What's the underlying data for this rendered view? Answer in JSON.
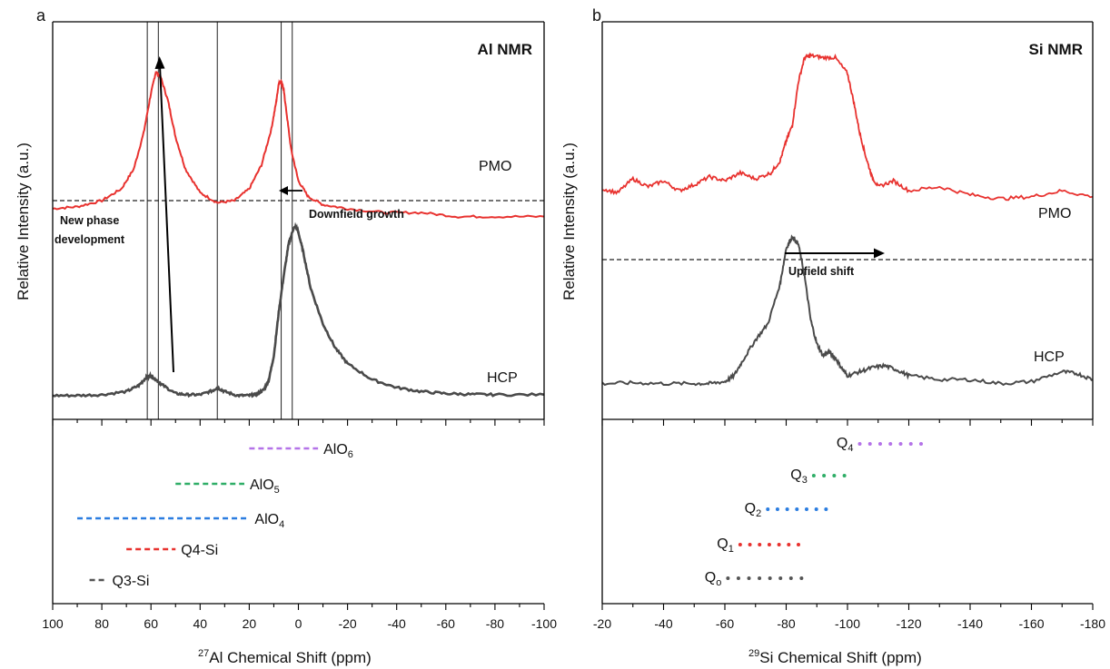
{
  "chart_data": [
    {
      "type": "line",
      "panel_letter": "a",
      "title": "Al NMR",
      "xlabel_sup": "27",
      "xlabel_main": "Al Chemical Shift (ppm)",
      "ylabel": "Relative Intensity (a.u.)",
      "xlim": [
        100,
        -100
      ],
      "x_ticks": [
        "100",
        "80",
        "60",
        "40",
        "20",
        "0",
        "-20",
        "-40",
        "-60",
        "-80",
        "-100"
      ],
      "x_tick_values": [
        100,
        80,
        60,
        40,
        20,
        0,
        -20,
        -40,
        -60,
        -80,
        -100
      ],
      "reference_lines_ppm": [
        61.5,
        57,
        33,
        7,
        2.5
      ],
      "series": [
        {
          "name": "PMO",
          "color": "#e8322f",
          "x": [
            100,
            90,
            80,
            72,
            67,
            63,
            60,
            58,
            56,
            53,
            50,
            46,
            40,
            33,
            26,
            20,
            15,
            11,
            9,
            8,
            7,
            6,
            5,
            3,
            0,
            -4,
            -10,
            -20,
            -35,
            -50,
            -65,
            -80,
            -100
          ],
          "y": [
            0.53,
            0.535,
            0.55,
            0.58,
            0.63,
            0.72,
            0.82,
            0.875,
            0.86,
            0.8,
            0.71,
            0.63,
            0.57,
            0.545,
            0.55,
            0.58,
            0.64,
            0.73,
            0.8,
            0.845,
            0.85,
            0.83,
            0.78,
            0.68,
            0.6,
            0.56,
            0.54,
            0.53,
            0.52,
            0.52,
            0.51,
            0.51,
            0.51
          ]
        },
        {
          "name": "HCP",
          "color": "#4a4a4a",
          "x": [
            100,
            90,
            80,
            70,
            65,
            62,
            60,
            58,
            55,
            50,
            45,
            40,
            35,
            33,
            30,
            25,
            20,
            17,
            14,
            12,
            10,
            8,
            6,
            4,
            2,
            1,
            0,
            -2,
            -5,
            -10,
            -15,
            -20,
            -30,
            -40,
            -50,
            -60,
            -70,
            -80,
            -100
          ],
          "y": [
            0.06,
            0.06,
            0.062,
            0.07,
            0.085,
            0.105,
            0.11,
            0.1,
            0.085,
            0.065,
            0.062,
            0.062,
            0.072,
            0.08,
            0.07,
            0.06,
            0.06,
            0.063,
            0.075,
            0.1,
            0.16,
            0.27,
            0.36,
            0.44,
            0.48,
            0.485,
            0.47,
            0.42,
            0.33,
            0.24,
            0.18,
            0.14,
            0.1,
            0.08,
            0.07,
            0.065,
            0.063,
            0.062,
            0.062
          ]
        }
      ],
      "baseline_y": 0.485,
      "annotations": {
        "pmo_label": "PMO",
        "hcp_label": "HCP",
        "new_phase_line1": "New phase",
        "new_phase_line2": "development",
        "downfield": "Downfield growth"
      },
      "ranges": [
        {
          "label_main": "AlO",
          "label_sub": "6",
          "from": 20,
          "to": -8,
          "color": "#b473e8",
          "style": "dash"
        },
        {
          "label_main": "AlO",
          "label_sub": "5",
          "from": 50,
          "to": 22,
          "color": "#2fae67",
          "style": "dash"
        },
        {
          "label_main": "AlO",
          "label_sub": "4",
          "from": 90,
          "to": 20,
          "color": "#2b7de0",
          "style": "dash"
        },
        {
          "label_main": "Q4-Si",
          "label_sub": "",
          "from": 70,
          "to": 50,
          "color": "#e8322f",
          "style": "dash"
        },
        {
          "label_main": "Q3-Si",
          "label_sub": "",
          "from": 85,
          "to": 78,
          "color": "#555555",
          "style": "dash"
        }
      ]
    },
    {
      "type": "line",
      "panel_letter": "b",
      "title": "Si NMR",
      "xlabel_sup": "29",
      "xlabel_main": "Si Chemical Shift (ppm)",
      "ylabel": "Relative Intensity (a.u.)",
      "xlim": [
        -20,
        -180
      ],
      "x_ticks": [
        "-20",
        "-40",
        "-60",
        "-80",
        "-100",
        "-120",
        "-140",
        "-160",
        "-180"
      ],
      "x_tick_values": [
        -20,
        -40,
        -60,
        -80,
        -100,
        -120,
        -140,
        -160,
        -180
      ],
      "series": [
        {
          "name": "PMO",
          "color": "#e8322f",
          "x": [
            -20,
            -25,
            -30,
            -35,
            -40,
            -45,
            -50,
            -55,
            -60,
            -65,
            -70,
            -75,
            -78,
            -80,
            -82,
            -84,
            -86,
            -88,
            -92,
            -96,
            -100,
            -102,
            -104,
            -106,
            -108,
            -110,
            -115,
            -120,
            -130,
            -140,
            -150,
            -160,
            -170,
            -180
          ],
          "y": [
            0.58,
            0.57,
            0.605,
            0.585,
            0.6,
            0.575,
            0.59,
            0.61,
            0.6,
            0.62,
            0.605,
            0.62,
            0.65,
            0.7,
            0.74,
            0.85,
            0.91,
            0.915,
            0.91,
            0.91,
            0.87,
            0.8,
            0.72,
            0.66,
            0.61,
            0.585,
            0.6,
            0.575,
            0.585,
            0.565,
            0.555,
            0.56,
            0.575,
            0.56
          ]
        },
        {
          "name": "HCP",
          "color": "#4a4a4a",
          "x": [
            -20,
            -30,
            -40,
            -50,
            -55,
            -60,
            -63,
            -66,
            -70,
            -74,
            -78,
            -80,
            -82,
            -84,
            -86,
            -88,
            -90,
            -92,
            -94,
            -96,
            -98,
            -100,
            -104,
            -108,
            -112,
            -116,
            -120,
            -130,
            -140,
            -150,
            -160,
            -170,
            -175,
            -180
          ],
          "y": [
            0.09,
            0.092,
            0.09,
            0.09,
            0.09,
            0.095,
            0.11,
            0.15,
            0.2,
            0.24,
            0.34,
            0.43,
            0.46,
            0.44,
            0.36,
            0.25,
            0.19,
            0.16,
            0.17,
            0.155,
            0.13,
            0.11,
            0.12,
            0.13,
            0.135,
            0.125,
            0.11,
            0.1,
            0.1,
            0.09,
            0.095,
            0.12,
            0.115,
            0.1
          ]
        }
      ],
      "baseline_y": 0.485,
      "annotations": {
        "pmo_label": "PMO",
        "hcp_label": "HCP",
        "upfield": "Upfield shift"
      },
      "ranges": [
        {
          "label_main": "Q",
          "label_sub": "4",
          "from": -104,
          "to": -124,
          "color": "#b473e8",
          "style": "dot"
        },
        {
          "label_main": "Q",
          "label_sub": "3",
          "from": -89,
          "to": -99,
          "color": "#2fae67",
          "style": "dot"
        },
        {
          "label_main": "Q",
          "label_sub": "2",
          "from": -74,
          "to": -93,
          "color": "#2b7de0",
          "style": "dot"
        },
        {
          "label_main": "Q",
          "label_sub": "1",
          "from": -65,
          "to": -84,
          "color": "#e8322f",
          "style": "dot"
        },
        {
          "label_main": "Q",
          "label_sub": "o",
          "from": -61,
          "to": -85,
          "color": "#555555",
          "style": "dot"
        }
      ]
    }
  ]
}
